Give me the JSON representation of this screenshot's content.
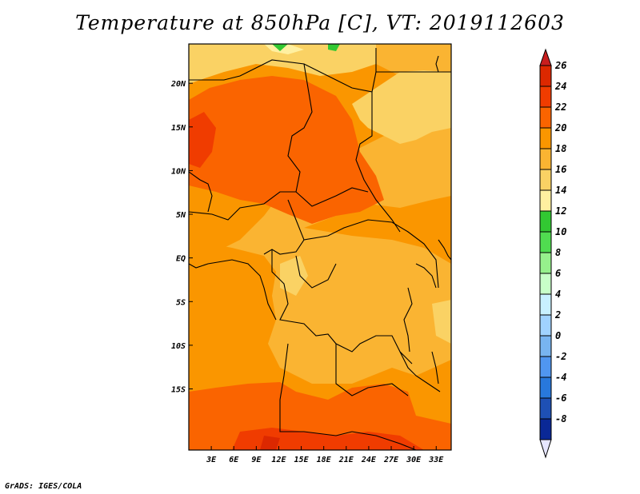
{
  "title": "Temperature at 850hPa [C], VT: 2019112603",
  "footer": "GrADS: IGES/COLA",
  "map": {
    "region": "Central Africa",
    "lon_range": [
      0,
      35
    ],
    "lat_range": [
      -22,
      24.5
    ],
    "lon_ticks": [
      {
        "value": 3,
        "label": "3E"
      },
      {
        "value": 6,
        "label": "6E"
      },
      {
        "value": 9,
        "label": "9E"
      },
      {
        "value": 12,
        "label": "12E"
      },
      {
        "value": 15,
        "label": "15E"
      },
      {
        "value": 18,
        "label": "18E"
      },
      {
        "value": 21,
        "label": "21E"
      },
      {
        "value": 24,
        "label": "24E"
      },
      {
        "value": 27,
        "label": "27E"
      },
      {
        "value": 30,
        "label": "30E"
      },
      {
        "value": 33,
        "label": "33E"
      }
    ],
    "lat_ticks": [
      {
        "value": 20,
        "label": "20N"
      },
      {
        "value": 15,
        "label": "15N"
      },
      {
        "value": 10,
        "label": "10N"
      },
      {
        "value": 5,
        "label": "5N"
      },
      {
        "value": 0,
        "label": "EQ"
      },
      {
        "value": -5,
        "label": "5S"
      },
      {
        "value": -10,
        "label": "10S"
      },
      {
        "value": -15,
        "label": "15S"
      }
    ]
  },
  "colorbar": {
    "levels": [
      {
        "value": "26",
        "color": "#dc2800"
      },
      {
        "value": "24",
        "color": "#f03c00"
      },
      {
        "value": "22",
        "color": "#fa6400"
      },
      {
        "value": "20",
        "color": "#fa9600"
      },
      {
        "value": "18",
        "color": "#fab432"
      },
      {
        "value": "16",
        "color": "#fad264"
      },
      {
        "value": "14",
        "color": "#fff0a0"
      },
      {
        "value": "12",
        "color": "#32c832"
      },
      {
        "value": "10",
        "color": "#50dc50"
      },
      {
        "value": "8",
        "color": "#96f08c"
      },
      {
        "value": "6",
        "color": "#c8ffc8"
      },
      {
        "value": "4",
        "color": "#c8f0ff"
      },
      {
        "value": "2",
        "color": "#a0d2ff"
      },
      {
        "value": "0",
        "color": "#78b4f0"
      },
      {
        "value": "-2",
        "color": "#5096f0"
      },
      {
        "value": "-4",
        "color": "#2878dc"
      },
      {
        "value": "-6",
        "color": "#1e50b4"
      },
      {
        "value": "-8",
        "color": "#0a2896"
      }
    ],
    "top_color": "#c81e1e",
    "bottom_color": "#e6e6ff"
  }
}
